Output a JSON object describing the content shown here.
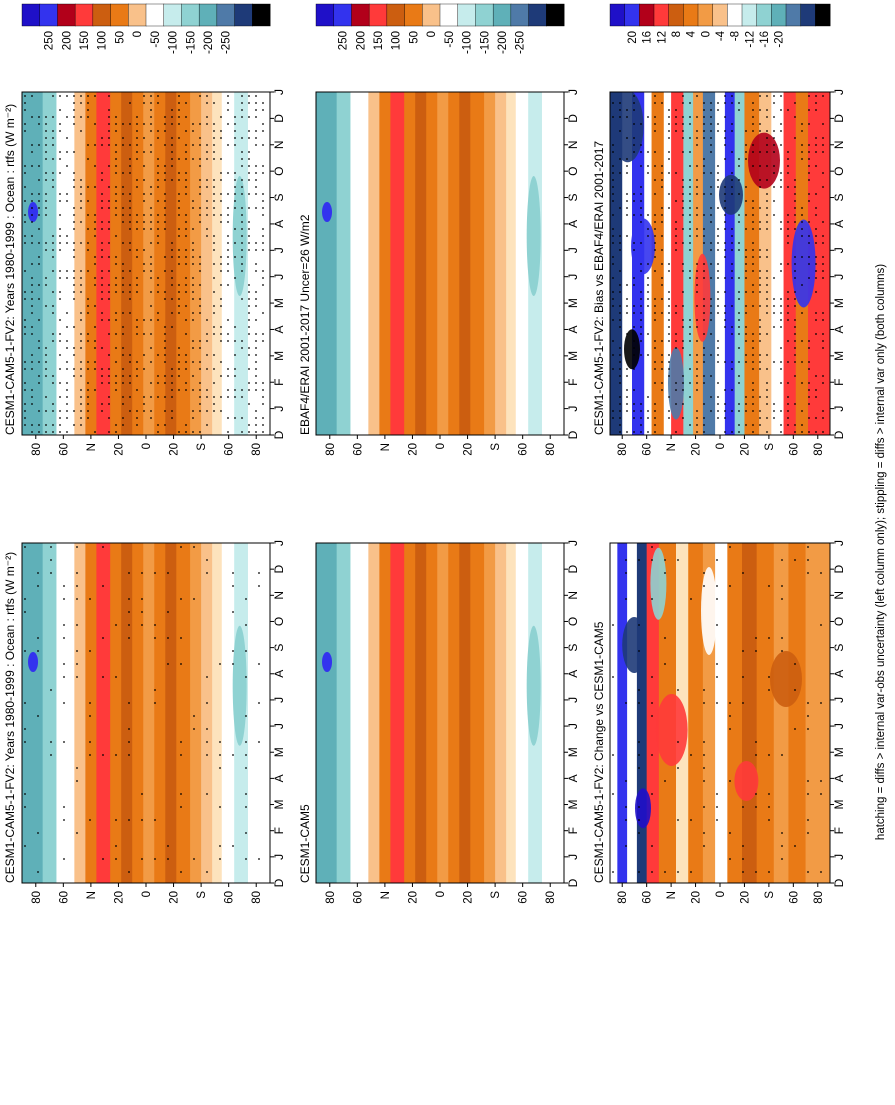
{
  "figure": {
    "footnote": "hatching = diffs > internal var-obs uncertainty (left column only); stippling = diffs > internal var only (both columns)",
    "colors": {
      "blue_deep": "#1f10c8",
      "blue": "#3333ee",
      "red_deep": "#b2001a",
      "red": "#ff3a3a",
      "orange_deep": "#cc5e10",
      "orange": "#e97a16",
      "orange_light": "#f29b45",
      "peach": "#f9c18a",
      "cream": "#fde3bd",
      "white": "#ffffff",
      "cyan_light": "#c6ecec",
      "cyan": "#8fd2d2",
      "teal": "#5fb0b8",
      "steel": "#4f7aa8",
      "navy": "#1e3a78",
      "black": "#000000"
    }
  },
  "chart_data": [
    {
      "id": "p11",
      "type": "heatmap",
      "title": "CESM1-CAM5-1-FV2: Years 1980-1999 : Ocean : rtfs (W m⁻²)",
      "x": [
        "D",
        "J",
        "F",
        "M",
        "A",
        "M",
        "J",
        "J",
        "A",
        "S",
        "O",
        "N",
        "D",
        "J"
      ],
      "y_ticks": [
        "80",
        "60",
        "N",
        "20",
        "0",
        "20",
        "S",
        "60",
        "80"
      ],
      "y_range": [
        90,
        -90
      ],
      "colorbar": {
        "levels": [
          "250",
          "200",
          "150",
          "100",
          "50",
          "0",
          "-50",
          "-100",
          "-150",
          "-200",
          "-250"
        ]
      },
      "stipple": "dense"
    },
    {
      "id": "p12",
      "type": "heatmap",
      "title": "CESM1-CAM5-1-FV2: Years 1980-1999 : Ocean : rtfs (W m⁻²)",
      "x": [
        "D",
        "J",
        "F",
        "M",
        "A",
        "M",
        "J",
        "J",
        "A",
        "S",
        "O",
        "N",
        "D",
        "J"
      ],
      "y_ticks": [
        "80",
        "60",
        "N",
        "20",
        "0",
        "20",
        "S",
        "60",
        "80"
      ],
      "y_range": [
        90,
        -90
      ],
      "colorbar": {
        "levels": [
          "250",
          "200",
          "150",
          "100",
          "50",
          "0",
          "-50",
          "-100",
          "-150",
          "-200",
          "-250"
        ]
      },
      "stipple": "sparse"
    },
    {
      "id": "p21",
      "type": "heatmap",
      "title": "EBAF4/ERAI 2001-2017 Uncer=26 W/m2",
      "x": [
        "D",
        "J",
        "F",
        "M",
        "A",
        "M",
        "J",
        "J",
        "A",
        "S",
        "O",
        "N",
        "D",
        "J"
      ],
      "y_ticks": [
        "80",
        "60",
        "N",
        "20",
        "0",
        "20",
        "S",
        "60",
        "80"
      ],
      "y_range": [
        90,
        -90
      ],
      "colorbar": {
        "levels": [
          "250",
          "200",
          "150",
          "100",
          "50",
          "0",
          "-50",
          "-100",
          "-150",
          "-200",
          "-250"
        ]
      },
      "stipple": "none"
    },
    {
      "id": "p22",
      "type": "heatmap",
      "title": "CESM1-CAM5",
      "x": [
        "D",
        "J",
        "F",
        "M",
        "A",
        "M",
        "J",
        "J",
        "A",
        "S",
        "O",
        "N",
        "D",
        "J"
      ],
      "y_ticks": [
        "80",
        "60",
        "N",
        "20",
        "0",
        "20",
        "S",
        "60",
        "80"
      ],
      "y_range": [
        90,
        -90
      ],
      "colorbar": {
        "levels": [
          "250",
          "200",
          "150",
          "100",
          "50",
          "0",
          "-50",
          "-100",
          "-150",
          "-200",
          "-250"
        ]
      },
      "stipple": "none"
    },
    {
      "id": "p31",
      "type": "heatmap",
      "title": "CESM1-CAM5-1-FV2: Bias vs EBAF4/ERAI 2001-2017",
      "x": [
        "D",
        "J",
        "F",
        "M",
        "A",
        "M",
        "J",
        "J",
        "A",
        "S",
        "O",
        "N",
        "D",
        "J"
      ],
      "y_ticks": [
        "80",
        "60",
        "N",
        "20",
        "0",
        "20",
        "S",
        "60",
        "80"
      ],
      "y_range": [
        90,
        -90
      ],
      "colorbar": {
        "levels": [
          "20",
          "16",
          "12",
          "8",
          "4",
          "0",
          "-4",
          "-8",
          "-12",
          "-16",
          "-20"
        ]
      },
      "stipple": "dense"
    },
    {
      "id": "p32",
      "type": "heatmap",
      "title": "CESM1-CAM5-1-FV2: Change vs CESM1-CAM5",
      "x": [
        "D",
        "J",
        "F",
        "M",
        "A",
        "M",
        "J",
        "J",
        "A",
        "S",
        "O",
        "N",
        "D",
        "J"
      ],
      "y_ticks": [
        "80",
        "60",
        "N",
        "20",
        "0",
        "20",
        "S",
        "60",
        "80"
      ],
      "y_range": [
        90,
        -90
      ],
      "colorbar": {
        "levels": [
          "20",
          "16",
          "12",
          "8",
          "4",
          "0",
          "-4",
          "-8",
          "-12",
          "-16",
          "-20"
        ]
      },
      "stipple": "sparse"
    }
  ]
}
